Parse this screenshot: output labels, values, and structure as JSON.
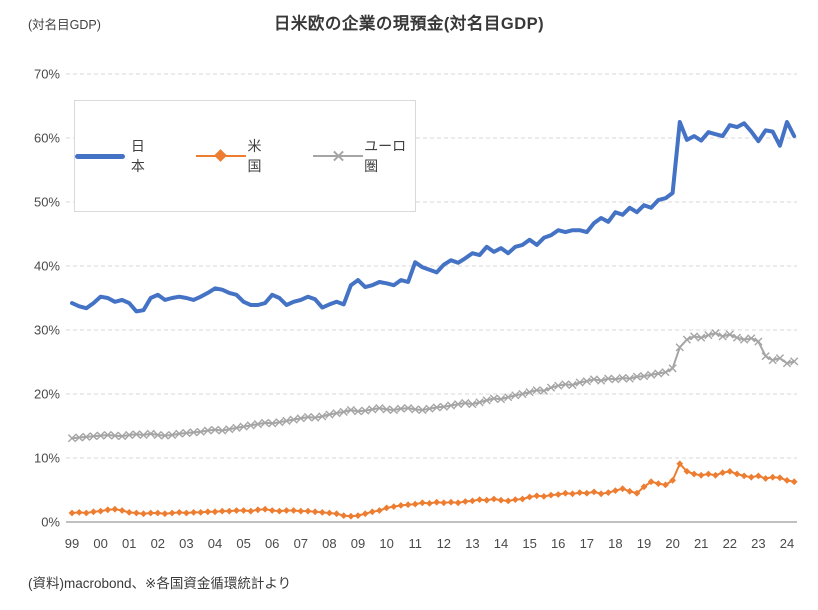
{
  "header": {
    "unit_label": "(対名目GDP)",
    "title": "日米欧の企業の現預金(対名目GDP)"
  },
  "footer": {
    "source_note": "(資料)macrobond、※各国資金循環統計より"
  },
  "colors": {
    "japan": "#4472C4",
    "us": "#ED7D31",
    "euro": "#A5A5A5",
    "gridline": "#d9d9d9",
    "axis_line": "#c0c0c0",
    "tick_text": "#4a4a4a"
  },
  "chart_data": {
    "type": "line",
    "title": "日米欧の企業の現預金(対名目GDP)",
    "unit": "percent of nominal GDP",
    "frequency": "quarterly",
    "x_start": "1999Q1",
    "x_end": "2024Q2",
    "x_tick_labels": [
      "99",
      "00",
      "01",
      "02",
      "03",
      "04",
      "05",
      "06",
      "07",
      "08",
      "09",
      "10",
      "11",
      "12",
      "13",
      "14",
      "15",
      "16",
      "17",
      "18",
      "19",
      "20",
      "21",
      "22",
      "23",
      "24"
    ],
    "ylim": [
      0,
      70
    ],
    "y_tick_labels": [
      "0%",
      "10%",
      "20%",
      "30%",
      "40%",
      "50%",
      "60%",
      "70%"
    ],
    "grid": "horizontal-dashed",
    "legend_position": "inside-top-left",
    "series": [
      {
        "name": "日本",
        "color": "#4472C4",
        "marker": "none",
        "line_width": 4,
        "values": [
          34.2,
          33.7,
          33.4,
          34.2,
          35.2,
          35.0,
          34.4,
          34.7,
          34.2,
          32.9,
          33.1,
          35.0,
          35.5,
          34.7,
          35.0,
          35.2,
          35.0,
          34.7,
          35.2,
          35.8,
          36.5,
          36.3,
          35.8,
          35.5,
          34.4,
          33.9,
          33.9,
          34.2,
          35.5,
          35.0,
          33.9,
          34.4,
          34.7,
          35.2,
          34.8,
          33.5,
          34.0,
          34.4,
          34.0,
          37.0,
          37.8,
          36.7,
          37.0,
          37.5,
          37.3,
          37.0,
          37.8,
          37.5,
          40.6,
          39.8,
          39.4,
          39.0,
          40.2,
          40.9,
          40.5,
          41.2,
          42.0,
          41.7,
          43.0,
          42.2,
          42.8,
          42.0,
          43.0,
          43.3,
          44.1,
          43.3,
          44.4,
          44.8,
          45.6,
          45.3,
          45.6,
          45.6,
          45.3,
          46.7,
          47.5,
          46.9,
          48.4,
          48.0,
          49.1,
          48.4,
          49.5,
          49.1,
          50.3,
          50.6,
          51.4,
          62.5,
          59.7,
          60.3,
          59.6,
          60.9,
          60.6,
          60.3,
          62.0,
          61.7,
          62.3,
          61.0,
          59.5,
          61.2,
          61.0,
          58.8,
          62.5,
          60.3
        ]
      },
      {
        "name": "米国",
        "color": "#ED7D31",
        "marker": "diamond",
        "line_width": 2,
        "values": [
          1.4,
          1.5,
          1.4,
          1.6,
          1.7,
          1.9,
          2.0,
          1.8,
          1.5,
          1.4,
          1.3,
          1.4,
          1.4,
          1.3,
          1.4,
          1.5,
          1.4,
          1.5,
          1.5,
          1.6,
          1.6,
          1.7,
          1.7,
          1.8,
          1.8,
          1.7,
          1.9,
          2.0,
          1.8,
          1.7,
          1.8,
          1.8,
          1.7,
          1.7,
          1.6,
          1.5,
          1.4,
          1.3,
          1.0,
          0.9,
          1.0,
          1.3,
          1.6,
          1.8,
          2.2,
          2.4,
          2.6,
          2.7,
          2.8,
          3.0,
          2.9,
          3.1,
          3.0,
          3.1,
          3.0,
          3.2,
          3.3,
          3.5,
          3.4,
          3.6,
          3.4,
          3.3,
          3.5,
          3.6,
          3.9,
          4.1,
          4.0,
          4.2,
          4.3,
          4.5,
          4.4,
          4.6,
          4.5,
          4.7,
          4.4,
          4.6,
          4.9,
          5.2,
          4.8,
          4.5,
          5.5,
          6.3,
          6.0,
          5.8,
          6.5,
          9.1,
          7.9,
          7.5,
          7.3,
          7.5,
          7.3,
          7.7,
          7.9,
          7.5,
          7.2,
          7.0,
          7.2,
          6.8,
          7.0,
          6.9,
          6.5,
          6.3
        ]
      },
      {
        "name": "ユーロ圏",
        "color": "#A5A5A5",
        "marker": "x",
        "line_width": 2,
        "values": [
          13.1,
          13.2,
          13.3,
          13.4,
          13.5,
          13.6,
          13.5,
          13.4,
          13.6,
          13.7,
          13.6,
          13.8,
          13.6,
          13.5,
          13.6,
          13.8,
          13.9,
          14.0,
          14.1,
          14.3,
          14.4,
          14.3,
          14.5,
          14.7,
          14.9,
          15.1,
          15.3,
          15.5,
          15.4,
          15.6,
          15.8,
          16.0,
          16.2,
          16.4,
          16.3,
          16.5,
          16.8,
          17.0,
          17.2,
          17.5,
          17.3,
          17.4,
          17.6,
          17.8,
          17.6,
          17.5,
          17.7,
          17.8,
          17.6,
          17.5,
          17.7,
          17.9,
          18.0,
          18.2,
          18.4,
          18.6,
          18.4,
          18.7,
          19.0,
          19.3,
          19.2,
          19.5,
          19.8,
          20.0,
          20.3,
          20.6,
          20.5,
          21.0,
          21.3,
          21.5,
          21.4,
          21.8,
          22.0,
          22.3,
          22.1,
          22.4,
          22.3,
          22.5,
          22.4,
          22.7,
          22.8,
          23.0,
          23.2,
          23.4,
          24.0,
          27.3,
          28.5,
          29.0,
          28.8,
          29.2,
          29.5,
          29.0,
          29.3,
          28.8,
          28.5,
          28.7,
          28.2,
          25.9,
          25.3,
          25.6,
          24.8,
          25.1
        ]
      }
    ]
  }
}
